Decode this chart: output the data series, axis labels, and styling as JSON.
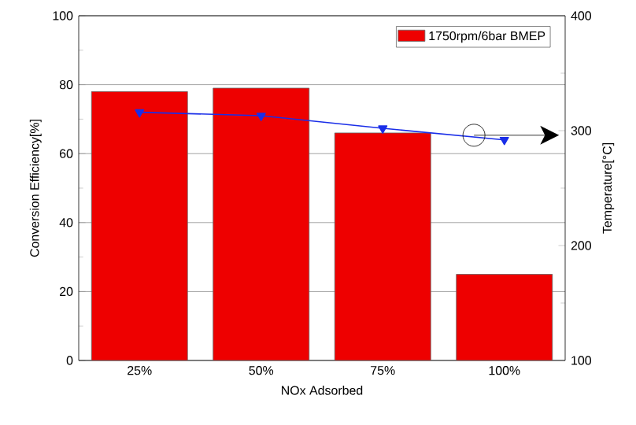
{
  "chart_data": {
    "type": "bar",
    "xlabel": "NOx Adsorbed",
    "ylabel": "Conversion Efficiency[%]",
    "y2label": "Temperature[°C]",
    "categories": [
      "25%",
      "50%",
      "75%",
      "100%"
    ],
    "series": [
      {
        "name": "1750rpm/6bar BMEP",
        "color": "#ee0000",
        "values": [
          78,
          79,
          66,
          25
        ]
      },
      {
        "type": "line",
        "axis": "y2",
        "color": "#1a2ee8",
        "marker": "triangle",
        "values": [
          316,
          313,
          302,
          292
        ]
      }
    ],
    "ylim": [
      0,
      100
    ],
    "yticks": [
      0,
      20,
      40,
      60,
      80,
      100
    ],
    "y2lim": [
      100,
      400
    ],
    "y2ticks": [
      100,
      200,
      300,
      400
    ],
    "grid": "y",
    "legend": "top right"
  }
}
